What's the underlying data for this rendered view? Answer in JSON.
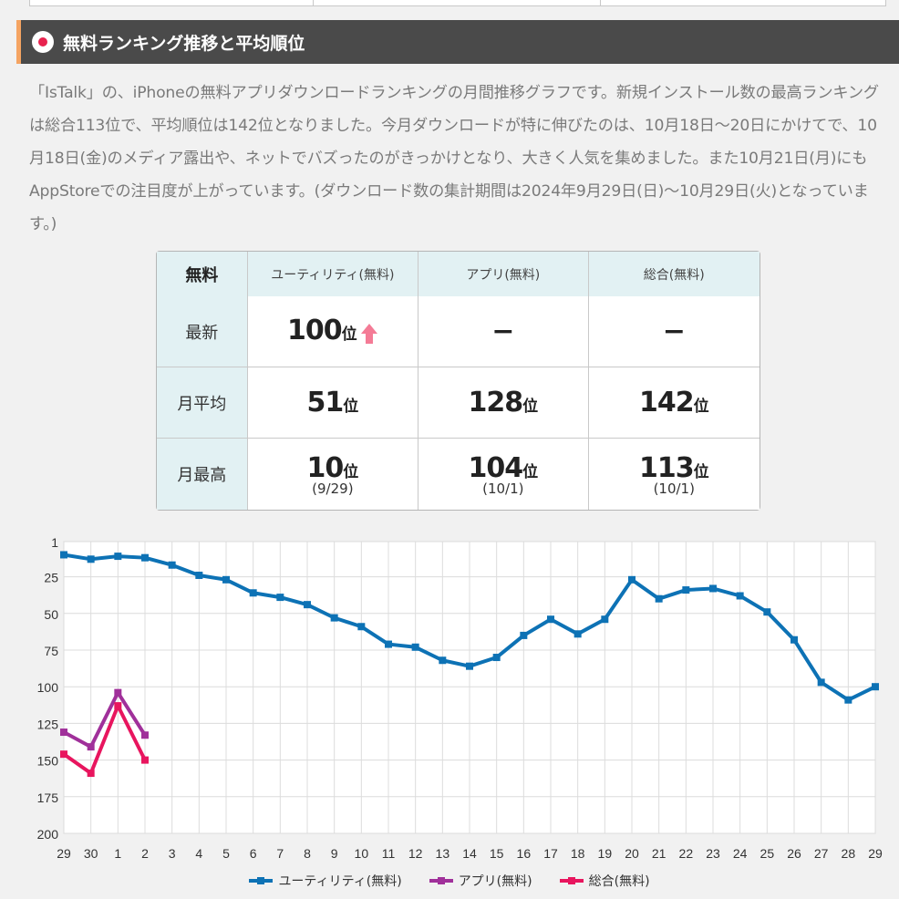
{
  "heading": {
    "title": "無料ランキング推移と平均順位"
  },
  "description": "「IsTalk」の、iPhoneの無料アプリダウンロードランキングの月間推移グラフです。新規インストール数の最高ランキングは総合113位で、平均順位は142位となりました。今月ダウンロードが特に伸びたのは、10月18日〜20日にかけてで、10月18日(金)のメディア露出や、ネットでバズったのがきっかけとなり、大きく人気を集めました。また10月21日(月)にもAppStoreでの注目度が上がっています。(ダウンロード数の集計期間は2024年9月29日(日)〜10月29日(火)となっています。)",
  "table": {
    "corner": "無料",
    "columns": [
      "ユーティリティ(無料)",
      "アプリ(無料)",
      "総合(無料)"
    ],
    "unit": "位",
    "rows": [
      {
        "label": "最新",
        "cells": [
          {
            "value": "100",
            "trend": "up"
          },
          {
            "value": "−"
          },
          {
            "value": "−"
          }
        ]
      },
      {
        "label": "月平均",
        "cells": [
          {
            "value": "51"
          },
          {
            "value": "128"
          },
          {
            "value": "142"
          }
        ]
      },
      {
        "label": "月最高",
        "cells": [
          {
            "value": "10",
            "date": "(9/29)"
          },
          {
            "value": "104",
            "date": "(10/1)"
          },
          {
            "value": "113",
            "date": "(10/1)"
          }
        ]
      }
    ]
  },
  "colors": {
    "utility": "#0d72b5",
    "app": "#a0309a",
    "overall": "#e8155e",
    "arrow": "#f47b96"
  },
  "chart_data": {
    "type": "line",
    "x": [
      "29",
      "30",
      "1",
      "2",
      "3",
      "4",
      "5",
      "6",
      "7",
      "8",
      "9",
      "10",
      "11",
      "12",
      "13",
      "14",
      "15",
      "16",
      "17",
      "18",
      "19",
      "20",
      "21",
      "22",
      "23",
      "24",
      "25",
      "26",
      "27",
      "28",
      "29"
    ],
    "y_axis": {
      "reversed": true,
      "ylim": [
        1,
        200
      ],
      "ticks": [
        "1",
        "25",
        "50",
        "75",
        "100",
        "125",
        "150",
        "175",
        "200"
      ]
    },
    "grid": true,
    "legend_position": "bottom",
    "series": [
      {
        "name": "ユーティリティ(無料)",
        "color_key": "utility",
        "values": [
          10,
          13,
          11,
          12,
          17,
          24,
          27,
          36,
          39,
          44,
          53,
          59,
          71,
          73,
          82,
          86,
          80,
          65,
          54,
          64,
          54,
          27,
          40,
          34,
          33,
          38,
          49,
          68,
          97,
          109,
          100
        ]
      },
      {
        "name": "アプリ(無料)",
        "color_key": "app",
        "values": [
          131,
          141,
          104,
          133,
          null,
          null,
          null,
          null,
          null,
          null,
          null,
          null,
          null,
          null,
          null,
          null,
          null,
          null,
          null,
          null,
          null,
          null,
          null,
          null,
          null,
          null,
          null,
          null,
          null,
          null,
          null
        ]
      },
      {
        "name": "総合(無料)",
        "color_key": "overall",
        "values": [
          146,
          159,
          113,
          150,
          null,
          null,
          null,
          null,
          null,
          null,
          null,
          null,
          null,
          null,
          null,
          null,
          null,
          null,
          null,
          null,
          null,
          null,
          null,
          null,
          null,
          null,
          null,
          null,
          null,
          null,
          null
        ]
      }
    ]
  }
}
